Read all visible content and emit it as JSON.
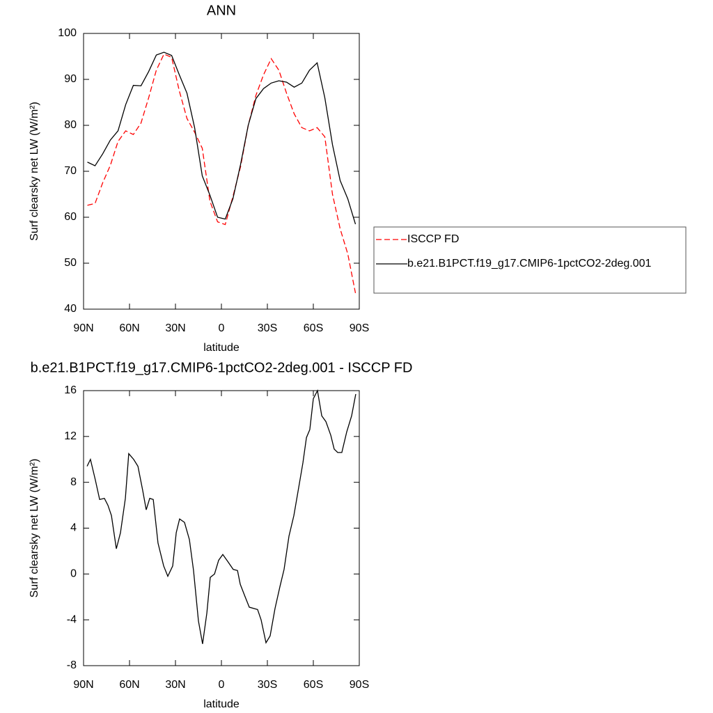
{
  "chart_data": [
    {
      "type": "line",
      "title": "ANN",
      "xlabel": "latitude",
      "ylabel": "Surf clearsky net LW (W/m²)",
      "x": [
        87.5,
        82.5,
        77.5,
        72.5,
        67.5,
        62.5,
        57.5,
        52.5,
        47.5,
        42.5,
        37.5,
        32.5,
        27.5,
        22.5,
        17.5,
        12.5,
        7.5,
        2.5,
        -2.5,
        -7.5,
        -12.5,
        -17.5,
        -22.5,
        -27.5,
        -32.5,
        -37.5,
        -42.5,
        -47.5,
        -52.5,
        -57.5,
        -62.5,
        -67.5,
        -72.5,
        -77.5,
        -82.5,
        -87.5
      ],
      "series": [
        {
          "name": "ISCCP FD",
          "color": "#ff0000",
          "linestyle": "dashed",
          "values": [
            62.6,
            63.0,
            67.5,
            71.3,
            76.5,
            78.8,
            78.0,
            80.5,
            86.0,
            92.0,
            95.5,
            94.8,
            87.5,
            81.5,
            78.5,
            75.0,
            63.5,
            59.0,
            58.4,
            64.5,
            71.0,
            80.0,
            86.5,
            91.0,
            94.5,
            92.0,
            87.0,
            82.5,
            79.5,
            78.8,
            79.5,
            77.5,
            65.0,
            57.5,
            52.0,
            43.5
          ]
        },
        {
          "name": "b.e21.B1PCT.f19_g17.CMIP6-1pctCO2-2deg.001",
          "color": "#000000",
          "linestyle": "solid",
          "values": [
            72.0,
            71.2,
            73.8,
            76.8,
            78.8,
            84.5,
            88.7,
            88.6,
            91.7,
            95.3,
            95.9,
            95.2,
            91.0,
            87.0,
            79.5,
            69.0,
            64.8,
            60.0,
            59.6,
            64.0,
            71.5,
            80.0,
            85.8,
            88.0,
            89.2,
            89.7,
            89.4,
            88.3,
            89.2,
            92.0,
            93.6,
            86.0,
            75.8,
            68.0,
            64.0,
            58.5
          ]
        }
      ],
      "xlim": [
        90,
        -90
      ],
      "xticks": [
        {
          "value": 90,
          "label": "90N"
        },
        {
          "value": 60,
          "label": "60N"
        },
        {
          "value": 30,
          "label": "30N"
        },
        0,
        {
          "value": -30,
          "label": "30S"
        },
        {
          "value": -60,
          "label": "60S"
        },
        {
          "value": -90,
          "label": "90S"
        }
      ],
      "ylim": [
        40,
        100
      ],
      "yticks": [
        40,
        50,
        60,
        70,
        80,
        90,
        100
      ],
      "legend": "right",
      "grid": false
    },
    {
      "type": "line",
      "title": "b.e21.B1PCT.f19_g17.CMIP6-1pctCO2-2deg.001 - ISCCP FD",
      "xlabel": "latitude",
      "ylabel": "Surf clearsky net LW (W/m²)",
      "x": [
        87.7,
        85.5,
        82.3,
        79.5,
        76.4,
        74.1,
        71.8,
        68.6,
        65.9,
        62.7,
        60.5,
        57.3,
        54.5,
        51.4,
        49.1,
        46.8,
        44.5,
        41.4,
        37.7,
        35.0,
        31.8,
        29.5,
        27.3,
        24.1,
        20.9,
        18.2,
        15.0,
        12.3,
        9.5,
        7.3,
        4.5,
        1.8,
        -0.9,
        -4.1,
        -7.7,
        -10.5,
        -12.3,
        -15.5,
        -18.2,
        -23.6,
        -25.9,
        -29.1,
        -31.8,
        -35.0,
        -38.2,
        -40.9,
        -44.1,
        -47.3,
        -50.0,
        -53.2,
        -55.5,
        -57.7,
        -60.0,
        -62.7,
        -65.5,
        -68.2,
        -71.4,
        -73.6,
        -75.9,
        -78.6,
        -81.8,
        -85.0,
        -87.7
      ],
      "series": [
        {
          "color": "#000000",
          "linestyle": "solid",
          "values": [
            9.4,
            10.0,
            8.2,
            6.5,
            6.6,
            6.0,
            5.1,
            2.2,
            3.6,
            6.6,
            10.5,
            10.0,
            9.4,
            7.3,
            5.6,
            6.6,
            6.5,
            2.7,
            0.7,
            -0.2,
            0.7,
            3.6,
            4.8,
            4.5,
            3.0,
            0.3,
            -4.1,
            -6.1,
            -3.4,
            -0.3,
            0.0,
            1.2,
            1.7,
            1.1,
            0.4,
            0.3,
            -0.9,
            -2.0,
            -2.9,
            -3.1,
            -4.0,
            -6.0,
            -5.4,
            -3.0,
            -1.1,
            0.4,
            3.3,
            5.1,
            7.2,
            9.7,
            11.9,
            12.6,
            15.3,
            16.0,
            13.8,
            13.3,
            12.1,
            10.9,
            10.6,
            10.6,
            12.4,
            13.8,
            15.7
          ]
        }
      ],
      "xlim": [
        90,
        -90
      ],
      "xticks": [
        {
          "value": 90,
          "label": "90N"
        },
        {
          "value": 60,
          "label": "60N"
        },
        {
          "value": 30,
          "label": "30N"
        },
        0,
        {
          "value": -30,
          "label": "30S"
        },
        {
          "value": -60,
          "label": "60S"
        },
        {
          "value": -90,
          "label": "90S"
        }
      ],
      "ylim": [
        -8,
        16
      ],
      "yticks": [
        -8,
        -4,
        0,
        4,
        8,
        12,
        16
      ],
      "grid": false
    }
  ]
}
